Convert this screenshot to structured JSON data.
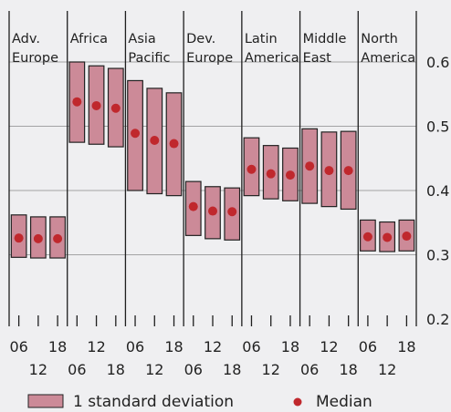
{
  "chart_data": {
    "type": "range-bar",
    "title": "",
    "xlabel": "",
    "ylabel": "",
    "ylim": [
      0.2,
      0.6
    ],
    "yticks": [
      "0.2",
      "0.3",
      "0.4",
      "0.5",
      "0.6"
    ],
    "grid": true,
    "legend_position": "bottom",
    "colors": {
      "bar_fill": "#cc8a98",
      "bar_edge": "#222222",
      "median": "#c0282d",
      "background": "#efeff1"
    },
    "legend": {
      "range_label": "1 standard deviation",
      "median_label": "Median"
    },
    "regions": [
      {
        "label_lines": [
          "Adv.",
          "Europe"
        ]
      },
      {
        "label_lines": [
          "Africa",
          ""
        ]
      },
      {
        "label_lines": [
          "Asia",
          "Pacific"
        ]
      },
      {
        "label_lines": [
          "Dev.",
          "Europe"
        ]
      },
      {
        "label_lines": [
          "Latin",
          "America"
        ]
      },
      {
        "label_lines": [
          "Middle",
          "East"
        ]
      },
      {
        "label_lines": [
          "North",
          "America"
        ]
      }
    ],
    "year_labels": [
      "06",
      "12",
      "18"
    ],
    "series": [
      {
        "region": "Adv. Europe",
        "year": "06",
        "low": 0.296,
        "high": 0.362,
        "median": 0.326
      },
      {
        "region": "Adv. Europe",
        "year": "12",
        "low": 0.295,
        "high": 0.359,
        "median": 0.325
      },
      {
        "region": "Adv. Europe",
        "year": "18",
        "low": 0.295,
        "high": 0.359,
        "median": 0.325
      },
      {
        "region": "Africa",
        "year": "06",
        "low": 0.475,
        "high": 0.6,
        "median": 0.538
      },
      {
        "region": "Africa",
        "year": "12",
        "low": 0.472,
        "high": 0.594,
        "median": 0.532
      },
      {
        "region": "Africa",
        "year": "18",
        "low": 0.468,
        "high": 0.59,
        "median": 0.528
      },
      {
        "region": "Asia Pacific",
        "year": "06",
        "low": 0.4,
        "high": 0.571,
        "median": 0.489
      },
      {
        "region": "Asia Pacific",
        "year": "12",
        "low": 0.395,
        "high": 0.559,
        "median": 0.478
      },
      {
        "region": "Asia Pacific",
        "year": "18",
        "low": 0.392,
        "high": 0.552,
        "median": 0.473
      },
      {
        "region": "Dev. Europe",
        "year": "06",
        "low": 0.33,
        "high": 0.414,
        "median": 0.375
      },
      {
        "region": "Dev. Europe",
        "year": "12",
        "low": 0.325,
        "high": 0.406,
        "median": 0.368
      },
      {
        "region": "Dev. Europe",
        "year": "18",
        "low": 0.323,
        "high": 0.404,
        "median": 0.367
      },
      {
        "region": "Latin America",
        "year": "06",
        "low": 0.392,
        "high": 0.482,
        "median": 0.433
      },
      {
        "region": "Latin America",
        "year": "12",
        "low": 0.387,
        "high": 0.47,
        "median": 0.426
      },
      {
        "region": "Latin America",
        "year": "18",
        "low": 0.384,
        "high": 0.466,
        "median": 0.424
      },
      {
        "region": "Middle East",
        "year": "06",
        "low": 0.38,
        "high": 0.496,
        "median": 0.438
      },
      {
        "region": "Middle East",
        "year": "12",
        "low": 0.375,
        "high": 0.491,
        "median": 0.431
      },
      {
        "region": "Middle East",
        "year": "18",
        "low": 0.371,
        "high": 0.492,
        "median": 0.431
      },
      {
        "region": "North America",
        "year": "06",
        "low": 0.306,
        "high": 0.354,
        "median": 0.328
      },
      {
        "region": "North America",
        "year": "12",
        "low": 0.305,
        "high": 0.351,
        "median": 0.327
      },
      {
        "region": "North America",
        "year": "18",
        "low": 0.306,
        "high": 0.354,
        "median": 0.329
      }
    ]
  }
}
